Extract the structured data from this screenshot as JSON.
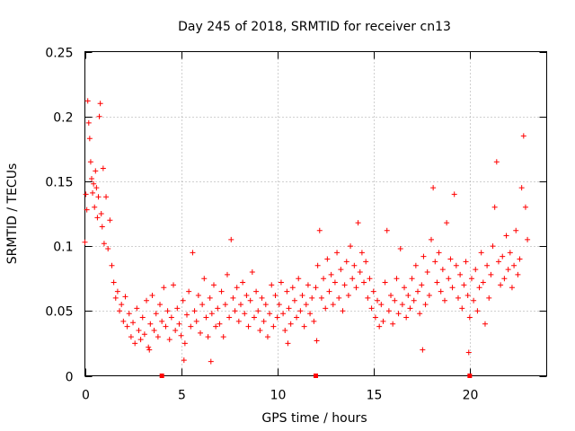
{
  "chart_data": {
    "type": "scatter",
    "title": "Day 245 of 2018, SRMTID for receiver cn13",
    "xlabel": "GPS time / hours",
    "ylabel": "SRMTID / TECUs",
    "xlim": [
      0,
      24
    ],
    "ylim": [
      0,
      0.25
    ],
    "x_ticks": [
      0,
      5,
      10,
      15,
      20
    ],
    "x_tick_labels": [
      "0",
      "5",
      "10",
      "15",
      "20"
    ],
    "y_ticks": [
      0,
      0.05,
      0.1,
      0.15,
      0.2,
      0.25
    ],
    "y_tick_labels": [
      "0",
      "0.05",
      "0.1",
      "0.15",
      "0.2",
      "0.25"
    ],
    "grid": true,
    "marker": "+",
    "series": [
      {
        "name": "SRMTID",
        "color": "#ff0000",
        "points": [
          [
            0.0,
            0.103
          ],
          [
            0.05,
            0.14
          ],
          [
            0.1,
            0.128
          ],
          [
            0.15,
            0.212
          ],
          [
            0.2,
            0.195
          ],
          [
            0.25,
            0.183
          ],
          [
            0.3,
            0.165
          ],
          [
            0.35,
            0.152
          ],
          [
            0.4,
            0.141
          ],
          [
            0.45,
            0.148
          ],
          [
            0.5,
            0.13
          ],
          [
            0.55,
            0.158
          ],
          [
            0.6,
            0.145
          ],
          [
            0.65,
            0.122
          ],
          [
            0.7,
            0.138
          ],
          [
            0.75,
            0.2
          ],
          [
            0.8,
            0.21
          ],
          [
            0.85,
            0.125
          ],
          [
            0.9,
            0.115
          ],
          [
            0.95,
            0.16
          ],
          [
            1.0,
            0.102
          ],
          [
            1.1,
            0.138
          ],
          [
            1.2,
            0.098
          ],
          [
            1.3,
            0.12
          ],
          [
            1.4,
            0.085
          ],
          [
            1.5,
            0.072
          ],
          [
            1.6,
            0.06
          ],
          [
            1.7,
            0.065
          ],
          [
            1.8,
            0.05
          ],
          [
            1.9,
            0.055
          ],
          [
            2.0,
            0.042
          ],
          [
            2.1,
            0.061
          ],
          [
            2.2,
            0.038
          ],
          [
            2.3,
            0.048
          ],
          [
            2.4,
            0.03
          ],
          [
            2.5,
            0.041
          ],
          [
            2.6,
            0.025
          ],
          [
            2.7,
            0.052
          ],
          [
            2.8,
            0.035
          ],
          [
            2.9,
            0.028
          ],
          [
            3.0,
            0.045
          ],
          [
            3.1,
            0.032
          ],
          [
            3.2,
            0.058
          ],
          [
            3.3,
            0.022
          ],
          [
            3.4,
            0.04
          ],
          [
            3.5,
            0.062
          ],
          [
            3.6,
            0.035
          ],
          [
            3.7,
            0.048
          ],
          [
            3.8,
            0.03
          ],
          [
            3.9,
            0.055
          ],
          [
            4.0,
            0.042
          ],
          [
            4.1,
            0.068
          ],
          [
            4.2,
            0.038
          ],
          [
            4.3,
            0.05
          ],
          [
            4.4,
            0.028
          ],
          [
            4.5,
            0.045
          ],
          [
            4.6,
            0.07
          ],
          [
            4.7,
            0.035
          ],
          [
            4.8,
            0.052
          ],
          [
            4.9,
            0.04
          ],
          [
            5.0,
            0.031
          ],
          [
            5.1,
            0.058
          ],
          [
            5.2,
            0.025
          ],
          [
            5.3,
            0.047
          ],
          [
            5.4,
            0.065
          ],
          [
            5.5,
            0.038
          ],
          [
            5.6,
            0.095
          ],
          [
            5.7,
            0.05
          ],
          [
            5.8,
            0.042
          ],
          [
            5.9,
            0.062
          ],
          [
            6.0,
            0.033
          ],
          [
            6.1,
            0.055
          ],
          [
            6.2,
            0.075
          ],
          [
            6.3,
            0.045
          ],
          [
            6.4,
            0.03
          ],
          [
            6.5,
            0.06
          ],
          [
            6.6,
            0.048
          ],
          [
            6.7,
            0.07
          ],
          [
            6.8,
            0.038
          ],
          [
            6.9,
            0.052
          ],
          [
            7.0,
            0.04
          ],
          [
            7.1,
            0.065
          ],
          [
            7.2,
            0.03
          ],
          [
            7.3,
            0.055
          ],
          [
            7.4,
            0.078
          ],
          [
            7.5,
            0.045
          ],
          [
            7.6,
            0.105
          ],
          [
            7.7,
            0.06
          ],
          [
            7.8,
            0.05
          ],
          [
            7.9,
            0.068
          ],
          [
            8.0,
            0.042
          ],
          [
            8.1,
            0.055
          ],
          [
            8.2,
            0.072
          ],
          [
            8.3,
            0.048
          ],
          [
            8.4,
            0.062
          ],
          [
            8.5,
            0.038
          ],
          [
            8.6,
            0.058
          ],
          [
            8.7,
            0.08
          ],
          [
            8.8,
            0.045
          ],
          [
            8.9,
            0.065
          ],
          [
            9.0,
            0.05
          ],
          [
            9.1,
            0.035
          ],
          [
            9.2,
            0.06
          ],
          [
            9.3,
            0.042
          ],
          [
            9.4,
            0.055
          ],
          [
            9.5,
            0.03
          ],
          [
            9.6,
            0.048
          ],
          [
            9.7,
            0.07
          ],
          [
            9.8,
            0.038
          ],
          [
            9.9,
            0.062
          ],
          [
            10.0,
            0.045
          ],
          [
            10.1,
            0.055
          ],
          [
            10.2,
            0.072
          ],
          [
            10.3,
            0.048
          ],
          [
            10.4,
            0.035
          ],
          [
            10.5,
            0.065
          ],
          [
            10.6,
            0.052
          ],
          [
            10.7,
            0.04
          ],
          [
            10.8,
            0.068
          ],
          [
            10.9,
            0.058
          ],
          [
            11.0,
            0.045
          ],
          [
            11.1,
            0.075
          ],
          [
            11.2,
            0.05
          ],
          [
            11.3,
            0.062
          ],
          [
            11.4,
            0.038
          ],
          [
            11.5,
            0.055
          ],
          [
            11.6,
            0.07
          ],
          [
            11.7,
            0.048
          ],
          [
            11.8,
            0.06
          ],
          [
            11.9,
            0.042
          ],
          [
            12.0,
            0.068
          ],
          [
            12.1,
            0.085
          ],
          [
            12.2,
            0.112
          ],
          [
            12.3,
            0.06
          ],
          [
            12.4,
            0.075
          ],
          [
            12.5,
            0.052
          ],
          [
            12.6,
            0.09
          ],
          [
            12.7,
            0.065
          ],
          [
            12.8,
            0.078
          ],
          [
            12.9,
            0.055
          ],
          [
            13.0,
            0.072
          ],
          [
            13.1,
            0.095
          ],
          [
            13.2,
            0.06
          ],
          [
            13.3,
            0.082
          ],
          [
            13.4,
            0.05
          ],
          [
            13.5,
            0.07
          ],
          [
            13.6,
            0.088
          ],
          [
            13.7,
            0.062
          ],
          [
            13.8,
            0.1
          ],
          [
            13.9,
            0.075
          ],
          [
            14.0,
            0.085
          ],
          [
            14.1,
            0.068
          ],
          [
            14.2,
            0.118
          ],
          [
            14.3,
            0.08
          ],
          [
            14.4,
            0.095
          ],
          [
            14.5,
            0.072
          ],
          [
            14.6,
            0.088
          ],
          [
            14.7,
            0.06
          ],
          [
            14.8,
            0.075
          ],
          [
            14.9,
            0.052
          ],
          [
            15.0,
            0.065
          ],
          [
            15.1,
            0.045
          ],
          [
            15.2,
            0.058
          ],
          [
            15.3,
            0.038
          ],
          [
            15.4,
            0.055
          ],
          [
            15.5,
            0.042
          ],
          [
            15.6,
            0.072
          ],
          [
            15.7,
            0.112
          ],
          [
            15.8,
            0.05
          ],
          [
            15.9,
            0.062
          ],
          [
            16.0,
            0.04
          ],
          [
            16.1,
            0.058
          ],
          [
            16.2,
            0.075
          ],
          [
            16.3,
            0.048
          ],
          [
            16.4,
            0.098
          ],
          [
            16.5,
            0.055
          ],
          [
            16.6,
            0.068
          ],
          [
            16.7,
            0.045
          ],
          [
            16.8,
            0.062
          ],
          [
            16.9,
            0.052
          ],
          [
            17.0,
            0.075
          ],
          [
            17.1,
            0.058
          ],
          [
            17.2,
            0.085
          ],
          [
            17.3,
            0.065
          ],
          [
            17.4,
            0.048
          ],
          [
            17.5,
            0.07
          ],
          [
            17.6,
            0.092
          ],
          [
            17.7,
            0.055
          ],
          [
            17.8,
            0.08
          ],
          [
            17.9,
            0.062
          ],
          [
            18.0,
            0.105
          ],
          [
            18.1,
            0.145
          ],
          [
            18.2,
            0.088
          ],
          [
            18.3,
            0.072
          ],
          [
            18.4,
            0.095
          ],
          [
            18.5,
            0.065
          ],
          [
            18.6,
            0.082
          ],
          [
            18.7,
            0.058
          ],
          [
            18.8,
            0.118
          ],
          [
            18.9,
            0.075
          ],
          [
            19.0,
            0.09
          ],
          [
            19.1,
            0.068
          ],
          [
            19.2,
            0.14
          ],
          [
            19.3,
            0.085
          ],
          [
            19.4,
            0.06
          ],
          [
            19.5,
            0.078
          ],
          [
            19.6,
            0.052
          ],
          [
            19.7,
            0.07
          ],
          [
            19.8,
            0.088
          ],
          [
            19.9,
            0.062
          ],
          [
            20.0,
            0.045
          ],
          [
            20.1,
            0.075
          ],
          [
            20.2,
            0.058
          ],
          [
            20.3,
            0.082
          ],
          [
            20.4,
            0.05
          ],
          [
            20.5,
            0.068
          ],
          [
            20.6,
            0.095
          ],
          [
            20.7,
            0.072
          ],
          [
            20.8,
            0.04
          ],
          [
            20.9,
            0.085
          ],
          [
            21.0,
            0.06
          ],
          [
            21.1,
            0.078
          ],
          [
            21.2,
            0.1
          ],
          [
            21.3,
            0.13
          ],
          [
            21.4,
            0.165
          ],
          [
            21.5,
            0.088
          ],
          [
            21.6,
            0.07
          ],
          [
            21.7,
            0.092
          ],
          [
            21.8,
            0.075
          ],
          [
            21.9,
            0.108
          ],
          [
            22.0,
            0.082
          ],
          [
            22.1,
            0.095
          ],
          [
            22.2,
            0.068
          ],
          [
            22.3,
            0.085
          ],
          [
            22.4,
            0.112
          ],
          [
            22.5,
            0.078
          ],
          [
            22.6,
            0.09
          ],
          [
            22.7,
            0.145
          ],
          [
            22.8,
            0.185
          ],
          [
            22.9,
            0.13
          ],
          [
            23.0,
            0.105
          ],
          [
            12.05,
            0.027
          ],
          [
            19.95,
            0.018
          ],
          [
            5.15,
            0.012
          ],
          [
            6.55,
            0.011
          ],
          [
            3.35,
            0.02
          ],
          [
            10.55,
            0.025
          ],
          [
            17.55,
            0.02
          ]
        ]
      }
    ],
    "axis_markers_x": [
      4,
      12,
      20
    ]
  }
}
